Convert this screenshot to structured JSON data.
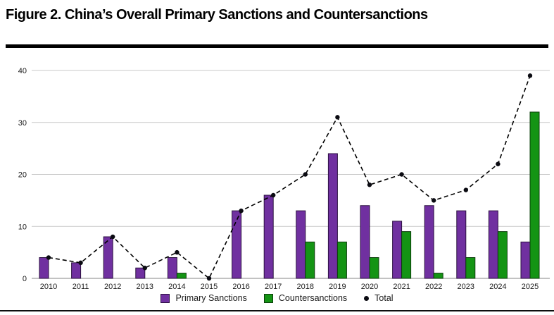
{
  "figure": {
    "title": "Figure 2. China’s Overall Primary Sanctions and Countersanctions"
  },
  "chart_data": {
    "type": "bar",
    "title": "Figure 2. China’s Overall Primary Sanctions and Countersanctions",
    "categories": [
      "2010",
      "2011",
      "2012",
      "2013",
      "2014",
      "2015",
      "2016",
      "2017",
      "2018",
      "2019",
      "2020",
      "2021",
      "2022",
      "2023",
      "2024",
      "2025"
    ],
    "series": [
      {
        "name": "Primary Sanctions",
        "type": "bar",
        "color": "#7030A0",
        "border": "#2b1140",
        "values": [
          4,
          3,
          8,
          2,
          4,
          0,
          13,
          16,
          13,
          24,
          14,
          11,
          14,
          13,
          13,
          7
        ]
      },
      {
        "name": "Countersanctions",
        "type": "bar",
        "color": "#149414",
        "border": "#0b3d0b",
        "values": [
          0,
          0,
          0,
          0,
          1,
          0,
          0,
          0,
          7,
          7,
          4,
          9,
          1,
          4,
          9,
          32
        ]
      },
      {
        "name": "Total",
        "type": "line",
        "color": "#000000",
        "marker": "dot",
        "values": [
          4,
          3,
          8,
          2,
          5,
          0,
          13,
          16,
          20,
          31,
          18,
          20,
          15,
          17,
          22,
          39
        ]
      }
    ],
    "xlabel": "",
    "ylabel": "",
    "ylim": [
      0,
      40
    ],
    "yticks": [
      0,
      10,
      20,
      30,
      40
    ],
    "grid": true,
    "line_style": "dashed",
    "legend_position": "bottom"
  }
}
